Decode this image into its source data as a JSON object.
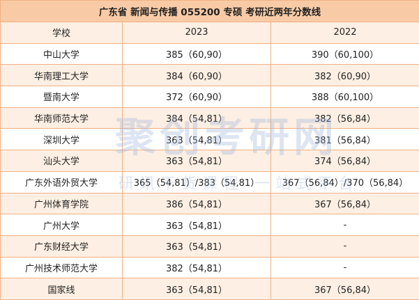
{
  "header": {
    "title": "广东省  新闻与传播  055200 专硕  考研近两年分数线"
  },
  "watermark": {
    "brand": "聚创考研网",
    "slogan": "研讯干货课程 一站式平台"
  },
  "table": {
    "columns": [
      "学校",
      "2023",
      "2022"
    ],
    "rows": [
      [
        "中山大学",
        "385（60,90）",
        "390（60,100）"
      ],
      [
        "华南理工大学",
        "384（60,90）",
        "382（60,90）"
      ],
      [
        "暨南大学",
        "372（60,90）",
        "388（60,100）"
      ],
      [
        "华南师范大学",
        "384（54,81）",
        "382（56,84）"
      ],
      [
        "深圳大学",
        "363（54,81）",
        "381（56,84）"
      ],
      [
        "汕头大学",
        "363（54,81）",
        "374（56,84）"
      ],
      [
        "广东外语外贸大学",
        "365（54,81）/383（54,81）",
        "367（56,84）/370（56,84）"
      ],
      [
        "广州体育学院",
        "386（54,81）",
        "367（56,84）"
      ],
      [
        "广州大学",
        "363（54,81）",
        "-"
      ],
      [
        "广东财经大学",
        "363（54,81）",
        "-"
      ],
      [
        "广州技术师范大学",
        "382（54,81）",
        "-"
      ],
      [
        "国家线",
        "363（54,81）",
        "367（56,84）"
      ]
    ]
  }
}
